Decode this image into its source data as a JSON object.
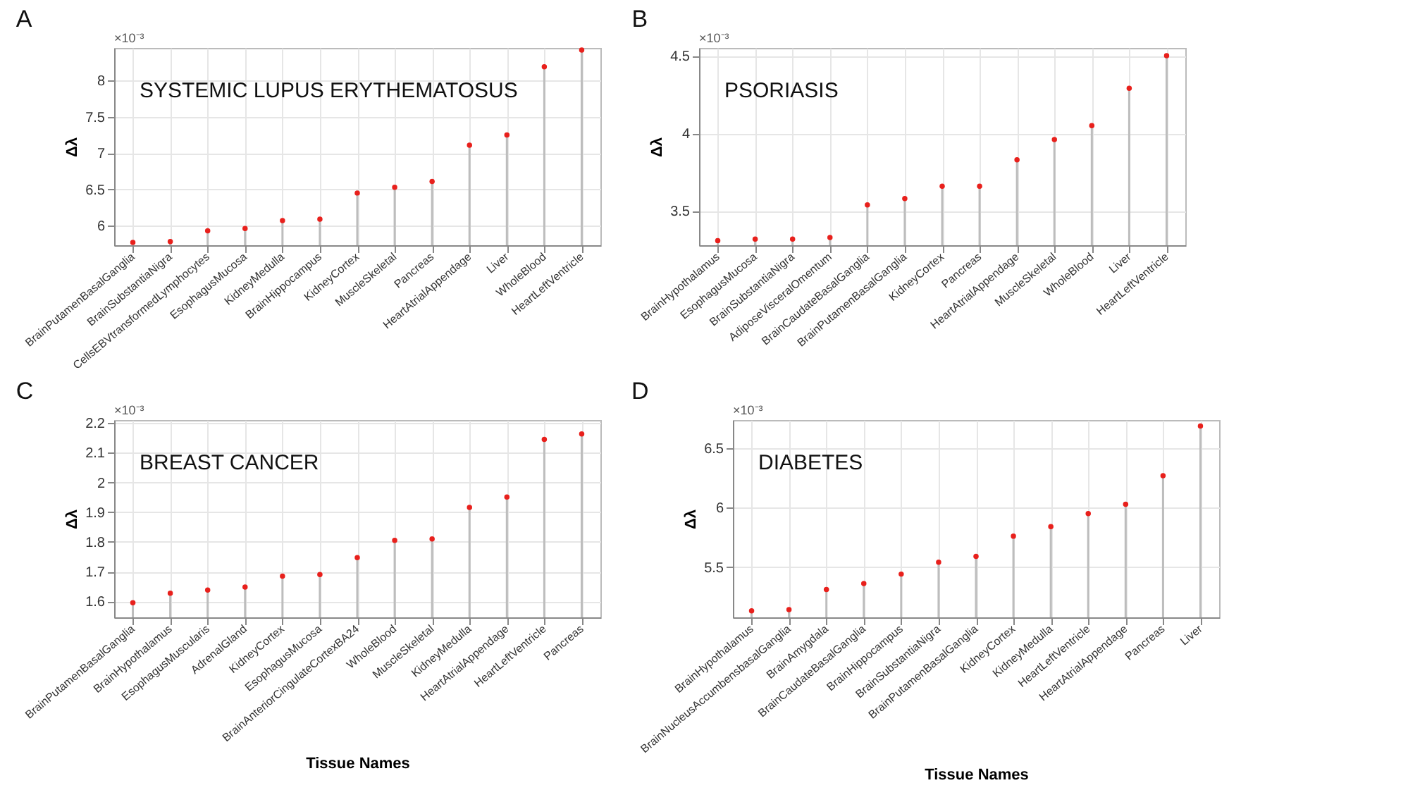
{
  "chart_data": [
    {
      "type": "lollipop",
      "title": "SYSTEMIC LUPUS ERYTHEMATOSUS",
      "ylabel": "Δλ",
      "annotations": [
        "A",
        "×10⁻³"
      ],
      "categories": [
        "BrainPutamenBasalGanglia",
        "BrainSubstantiaNigra",
        "CellsEBVtransformedLymphocytes",
        "EsophagusMucosa",
        "KidneyMedulla",
        "BrainHippocampus",
        "KidneyCortex",
        "MuscleSkeletal",
        "Pancreas",
        "HeartAtrialAppendage",
        "Liver",
        "WholeBlood",
        "HeartLeftVentricle"
      ],
      "series": [
        {
          "color": "#e8201c",
          "values": [
            5.77,
            5.78,
            5.93,
            5.96,
            6.07,
            6.09,
            6.45,
            6.53,
            6.61,
            7.11,
            7.25,
            8.19,
            8.42
          ]
        }
      ],
      "ylim": [
        5.73,
        8.45
      ],
      "yticks": [
        6,
        6.5,
        7,
        7.5,
        8
      ],
      "grid": true,
      "marker": "circle"
    },
    {
      "type": "lollipop",
      "title": "PSORIASIS",
      "ylabel": "Δλ",
      "annotations": [
        "B",
        "×10⁻³"
      ],
      "categories": [
        "BrainHypothalamus",
        "EsophagusMucosa",
        "BrainSubstantiaNigra",
        "AdiposeVisceralOmentum",
        "BrainCaudateBasalGanglia",
        "BrainPutamenBasalGanglia",
        "KidneyCortex",
        "Pancreas",
        "HeartAtrialAppendage",
        "MuscleSkeletal",
        "WholeBlood",
        "Liver",
        "HeartLeftVentricle"
      ],
      "series": [
        {
          "color": "#e8201c",
          "values": [
            3.31,
            3.32,
            3.32,
            3.33,
            3.54,
            3.58,
            3.66,
            3.66,
            3.83,
            3.96,
            4.05,
            4.29,
            4.5
          ]
        }
      ],
      "ylim": [
        3.28,
        4.55
      ],
      "yticks": [
        3.5,
        4,
        4.5
      ],
      "grid": true,
      "marker": "circle"
    },
    {
      "type": "lollipop",
      "title": "BREAST CANCER",
      "xlabel": "Tissue Names",
      "ylabel": "Δλ",
      "annotations": [
        "C",
        "×10⁻³"
      ],
      "categories": [
        "BrainPutamenBasalGanglia",
        "BrainHypothalamus",
        "EsophagusMuscularis",
        "AdrenalGland",
        "KidneyCortex",
        "EsophagusMucosa",
        "BrainAnteriorCingulateCortexBA24",
        "WholeBlood",
        "MuscleSkeletal",
        "KidneyMedulla",
        "HeartAtrialAppendage",
        "HeartLeftVentricle",
        "Pancreas"
      ],
      "series": [
        {
          "color": "#e8201c",
          "values": [
            1.595,
            1.627,
            1.638,
            1.648,
            1.685,
            1.69,
            1.747,
            1.805,
            1.81,
            1.916,
            1.951,
            2.145,
            2.163
          ]
        }
      ],
      "ylim": [
        1.546,
        2.21
      ],
      "yticks": [
        1.6,
        1.7,
        1.8,
        1.9,
        2,
        2.1,
        2.2
      ],
      "grid": true,
      "marker": "circle"
    },
    {
      "type": "lollipop",
      "title": "DIABETES",
      "xlabel": "Tissue Names",
      "ylabel": "Δλ",
      "annotations": [
        "D",
        "×10⁻³"
      ],
      "categories": [
        "BrainHypothalamus",
        "BrainNucleusAccumbensbasalGanglia",
        "BrainAmygdala",
        "BrainCaudateBasalGanglia",
        "BrainHippocampus",
        "BrainSubstantiaNigra",
        "BrainPutamenBasalGanglia",
        "KidneyCortex",
        "KidneyMedulla",
        "HeartLeftVentricle",
        "HeartAtrialAppendage",
        "Pancreas",
        "Liver"
      ],
      "series": [
        {
          "color": "#e8201c",
          "values": [
            5.13,
            5.14,
            5.31,
            5.36,
            5.44,
            5.54,
            5.59,
            5.76,
            5.84,
            5.95,
            6.03,
            6.27,
            6.69
          ]
        }
      ],
      "ylim": [
        5.075,
        6.74
      ],
      "yticks": [
        5.5,
        6,
        6.5
      ],
      "grid": true,
      "marker": "circle"
    }
  ]
}
